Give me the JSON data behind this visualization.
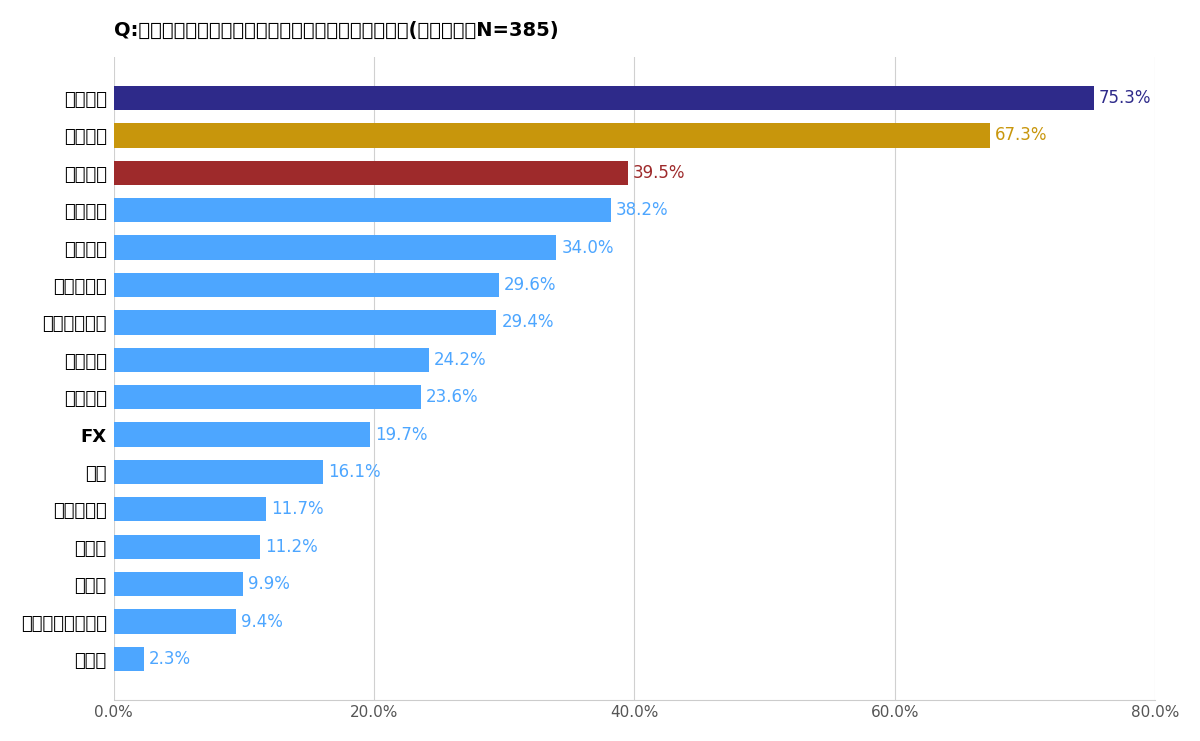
{
  "title": "Q:現在、投資しているものについて教えてください。(複数選択、N=385)",
  "categories": [
    "その他",
    "スタートアップ等",
    "ワイン",
    "アート",
    "海外不動産",
    "時計",
    "FX",
    "仮想通貨",
    "海外債券",
    "金・プラチナ",
    "国内不動産",
    "国内債券",
    "外貨預金",
    "外国株式",
    "投資信託",
    "国内株式"
  ],
  "values": [
    2.3,
    9.4,
    9.9,
    11.2,
    11.7,
    16.1,
    19.7,
    23.6,
    24.2,
    29.4,
    29.6,
    34.0,
    38.2,
    39.5,
    67.3,
    75.3
  ],
  "bar_colors": [
    "#4da6ff",
    "#4da6ff",
    "#4da6ff",
    "#4da6ff",
    "#4da6ff",
    "#4da6ff",
    "#4da6ff",
    "#4da6ff",
    "#4da6ff",
    "#4da6ff",
    "#4da6ff",
    "#4da6ff",
    "#4da6ff",
    "#9e2a2b",
    "#c8960c",
    "#2e2a8a"
  ],
  "value_colors": [
    "#4da6ff",
    "#4da6ff",
    "#4da6ff",
    "#4da6ff",
    "#4da6ff",
    "#4da6ff",
    "#4da6ff",
    "#4da6ff",
    "#4da6ff",
    "#4da6ff",
    "#4da6ff",
    "#4da6ff",
    "#4da6ff",
    "#9e2a2b",
    "#c8960c",
    "#2e2a8a"
  ],
  "xlim": [
    0,
    80
  ],
  "xticks": [
    0,
    20,
    40,
    60,
    80
  ],
  "xtick_labels": [
    "0.0%",
    "20.0%",
    "40.0%",
    "60.0%",
    "80.0%"
  ],
  "background_color": "#ffffff",
  "title_fontsize": 14,
  "label_fontsize": 13,
  "value_fontsize": 12,
  "bold_category": "FX"
}
